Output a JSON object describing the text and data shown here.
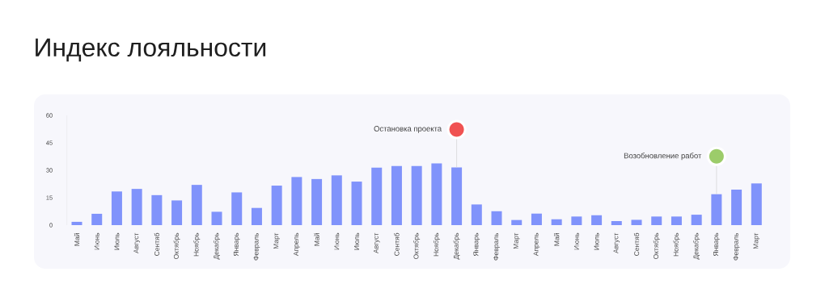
{
  "chart_data": {
    "type": "bar",
    "title": "Индекс лояльности",
    "categories": [
      "Май",
      "Июнь",
      "Июль",
      "Август",
      "Сентяб",
      "Октябрь",
      "Ноябрь",
      "Декабрь",
      "Январь",
      "Февраль",
      "Март",
      "Апрель",
      "Май",
      "Июнь",
      "Июль",
      "Август",
      "Сентяб",
      "Октябрь",
      "Ноябрь",
      "Декабрь",
      "Январь",
      "Февраль",
      "Март",
      "Апрель",
      "Май",
      "Июнь",
      "Июль",
      "Август",
      "Сентяб",
      "Октябрь",
      "Ноябрь",
      "Декабрь",
      "Январь",
      "Февраль",
      "Март"
    ],
    "values": [
      1.8,
      6.2,
      18.4,
      19.8,
      16.4,
      13.5,
      22,
      7.3,
      17.9,
      9.4,
      21.6,
      26.3,
      25.2,
      27.2,
      23.8,
      31.4,
      32.3,
      32.3,
      33.8,
      31.6,
      11.3,
      7.6,
      2.8,
      6.3,
      3.2,
      4.7,
      5.4,
      2.2,
      2.9,
      4.7,
      4.7,
      5.7,
      16.9,
      19.4,
      22.8
    ],
    "color": "#8093fb",
    "ylim": [
      0,
      60
    ],
    "yticks": [
      0,
      15,
      30,
      45,
      60
    ],
    "annotations": [
      "Остановка проекта",
      "Возобновление работ"
    ]
  }
}
